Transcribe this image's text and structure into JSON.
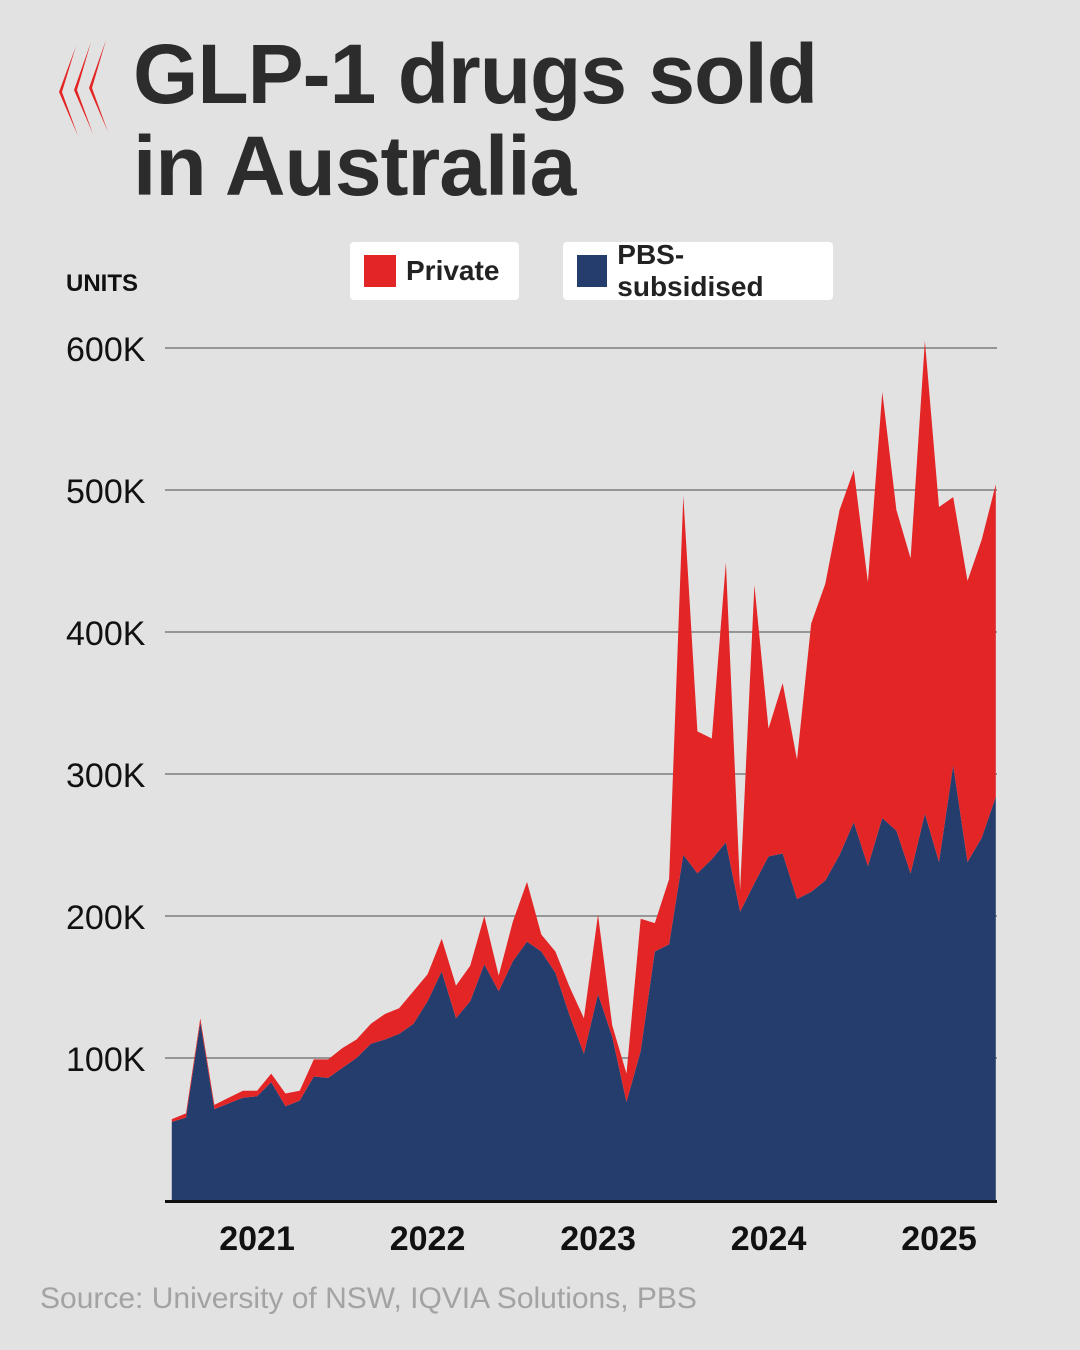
{
  "header": {
    "title_line1": "GLP-1 drugs sold",
    "title_line2": "in Australia"
  },
  "logo": {
    "icon": "sbs-logo-icon",
    "color": "#e32526"
  },
  "legend": [
    {
      "label": "Private",
      "color": "#e32526"
    },
    {
      "label": "PBS-subsidised",
      "color": "#253d6d"
    }
  ],
  "source": "Source: University of NSW, IQVIA Solutions, PBS",
  "chart_data": {
    "type": "area",
    "stacked": true,
    "ylabel": "UNITS",
    "ylim": [
      0,
      600000
    ],
    "yticks": [
      100000,
      200000,
      300000,
      400000,
      500000,
      600000
    ],
    "ytick_labels": [
      "100K",
      "200K",
      "300K",
      "400K",
      "500K",
      "600K"
    ],
    "xlim": [
      2020.46,
      2025.34
    ],
    "xticks": [
      2021,
      2022,
      2023,
      2024,
      2025
    ],
    "xtick_labels": [
      "2021",
      "2022",
      "2023",
      "2024",
      "2025"
    ],
    "grid": true,
    "legend_position": "top",
    "x": [
      2020.5,
      2020.583,
      2020.667,
      2020.75,
      2020.833,
      2020.917,
      2021.0,
      2021.083,
      2021.167,
      2021.25,
      2021.333,
      2021.417,
      2021.5,
      2021.583,
      2021.667,
      2021.75,
      2021.833,
      2021.917,
      2022.0,
      2022.083,
      2022.167,
      2022.25,
      2022.333,
      2022.417,
      2022.5,
      2022.583,
      2022.667,
      2022.75,
      2022.833,
      2022.917,
      2023.0,
      2023.083,
      2023.167,
      2023.25,
      2023.333,
      2023.417,
      2023.5,
      2023.583,
      2023.667,
      2023.75,
      2023.833,
      2023.917,
      2024.0,
      2024.083,
      2024.167,
      2024.25,
      2024.333,
      2024.417,
      2024.5,
      2024.583,
      2024.667,
      2024.75,
      2024.833,
      2024.917,
      2025.0,
      2025.083,
      2025.167,
      2025.25,
      2025.333
    ],
    "series": [
      {
        "name": "PBS-subsidised",
        "color": "#253d6d",
        "values": [
          55000,
          58000,
          125000,
          64000,
          68000,
          72000,
          73000,
          83000,
          66000,
          70000,
          87000,
          86000,
          93000,
          100000,
          110000,
          113000,
          117000,
          124000,
          140000,
          161000,
          128000,
          140000,
          166000,
          147000,
          168000,
          182000,
          175000,
          160000,
          130000,
          103000,
          145000,
          115000,
          69000,
          105000,
          175000,
          180000,
          243000,
          230000,
          240000,
          252000,
          203000,
          223000,
          242000,
          244000,
          212000,
          217000,
          225000,
          243000,
          266000,
          235000,
          269000,
          260000,
          230000,
          272000,
          238000,
          306000,
          238000,
          255000,
          284000
        ]
      },
      {
        "name": "Private",
        "color": "#e32526",
        "values": [
          2000,
          3000,
          3000,
          3000,
          4000,
          5000,
          4000,
          6000,
          9000,
          7000,
          12000,
          13000,
          14000,
          13000,
          14000,
          18000,
          18000,
          23000,
          19000,
          23000,
          23000,
          25000,
          34000,
          11000,
          28000,
          42000,
          12000,
          15000,
          20000,
          25000,
          56000,
          8000,
          20000,
          93000,
          20000,
          46000,
          253000,
          100000,
          85000,
          197000,
          15000,
          210000,
          90000,
          120000,
          98000,
          189000,
          209000,
          243000,
          248000,
          200000,
          300000,
          226000,
          222000,
          333000,
          250000,
          189000,
          198000,
          210000,
          220000
        ]
      }
    ]
  }
}
